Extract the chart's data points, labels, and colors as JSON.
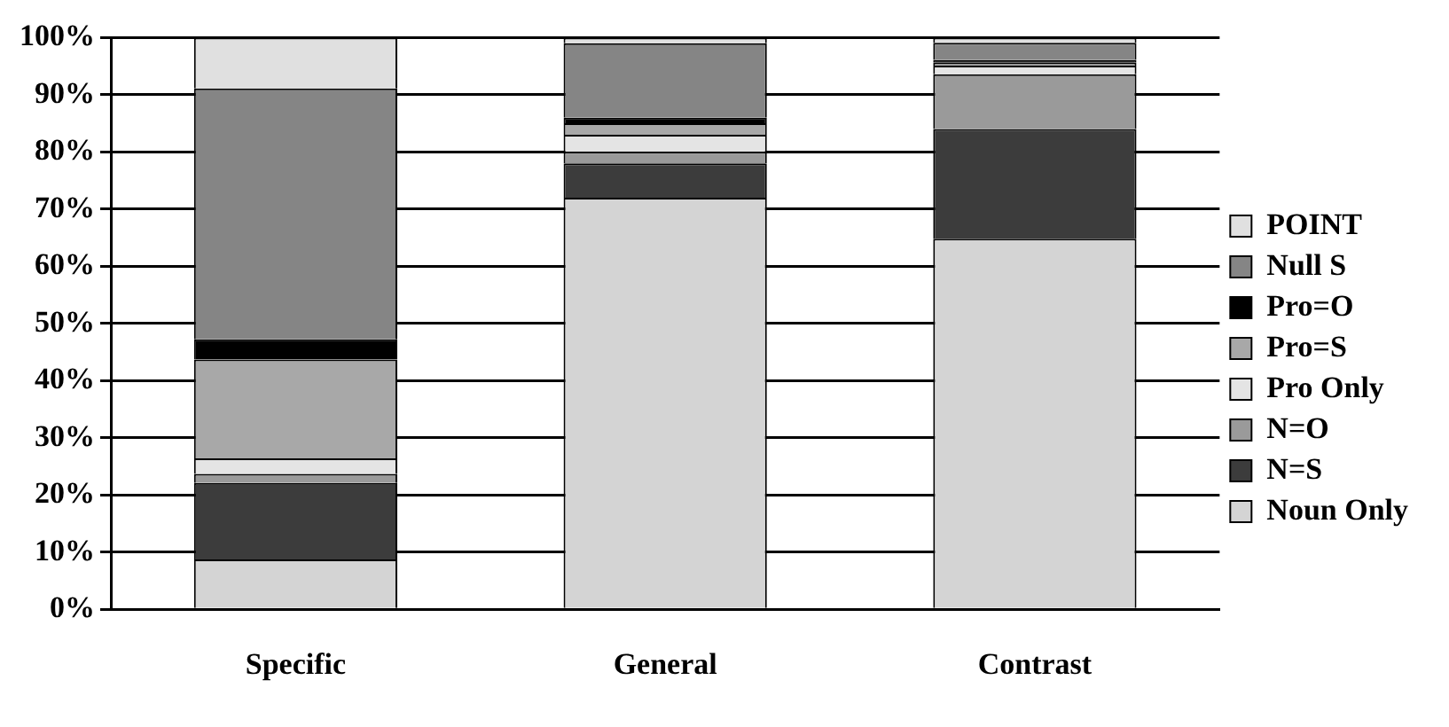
{
  "chart_data": {
    "type": "bar",
    "stacked": true,
    "categories": [
      "Specific",
      "General",
      "Contrast"
    ],
    "series": [
      {
        "name": "Noun Only",
        "color": "#d4d4d4",
        "values": [
          8.7,
          72,
          64.8
        ]
      },
      {
        "name": "N=S",
        "color": "#3c3c3c",
        "values": [
          13.4,
          6,
          19.2
        ]
      },
      {
        "name": "N=O",
        "color": "#9a9a9a",
        "values": [
          1.6,
          2,
          9.6
        ]
      },
      {
        "name": "Pro Only",
        "color": "#e4e4e4",
        "values": [
          2.7,
          3,
          1.5
        ]
      },
      {
        "name": "Pro=S",
        "color": "#a8a8a8",
        "values": [
          17.3,
          2,
          0.5
        ]
      },
      {
        "name": "Pro=O",
        "color": "#000000",
        "values": [
          3.5,
          1,
          0.5
        ]
      },
      {
        "name": "Null S",
        "color": "#858585",
        "values": [
          43.9,
          13,
          3
        ]
      },
      {
        "name": "POINT",
        "color": "#e0e0e0",
        "values": [
          8.9,
          1,
          0.9
        ]
      }
    ],
    "ylim": [
      0,
      100
    ],
    "yticks": [
      {
        "value": 0,
        "label": "0%"
      },
      {
        "value": 10,
        "label": "10%"
      },
      {
        "value": 20,
        "label": "20%"
      },
      {
        "value": 30,
        "label": "30%"
      },
      {
        "value": 40,
        "label": "40%"
      },
      {
        "value": 50,
        "label": "50%"
      },
      {
        "value": 60,
        "label": "60%"
      },
      {
        "value": 70,
        "label": "70%"
      },
      {
        "value": 80,
        "label": "80%"
      },
      {
        "value": 90,
        "label": "90%"
      },
      {
        "value": 100,
        "label": "100%"
      }
    ],
    "grid": "y",
    "legend": "right"
  }
}
